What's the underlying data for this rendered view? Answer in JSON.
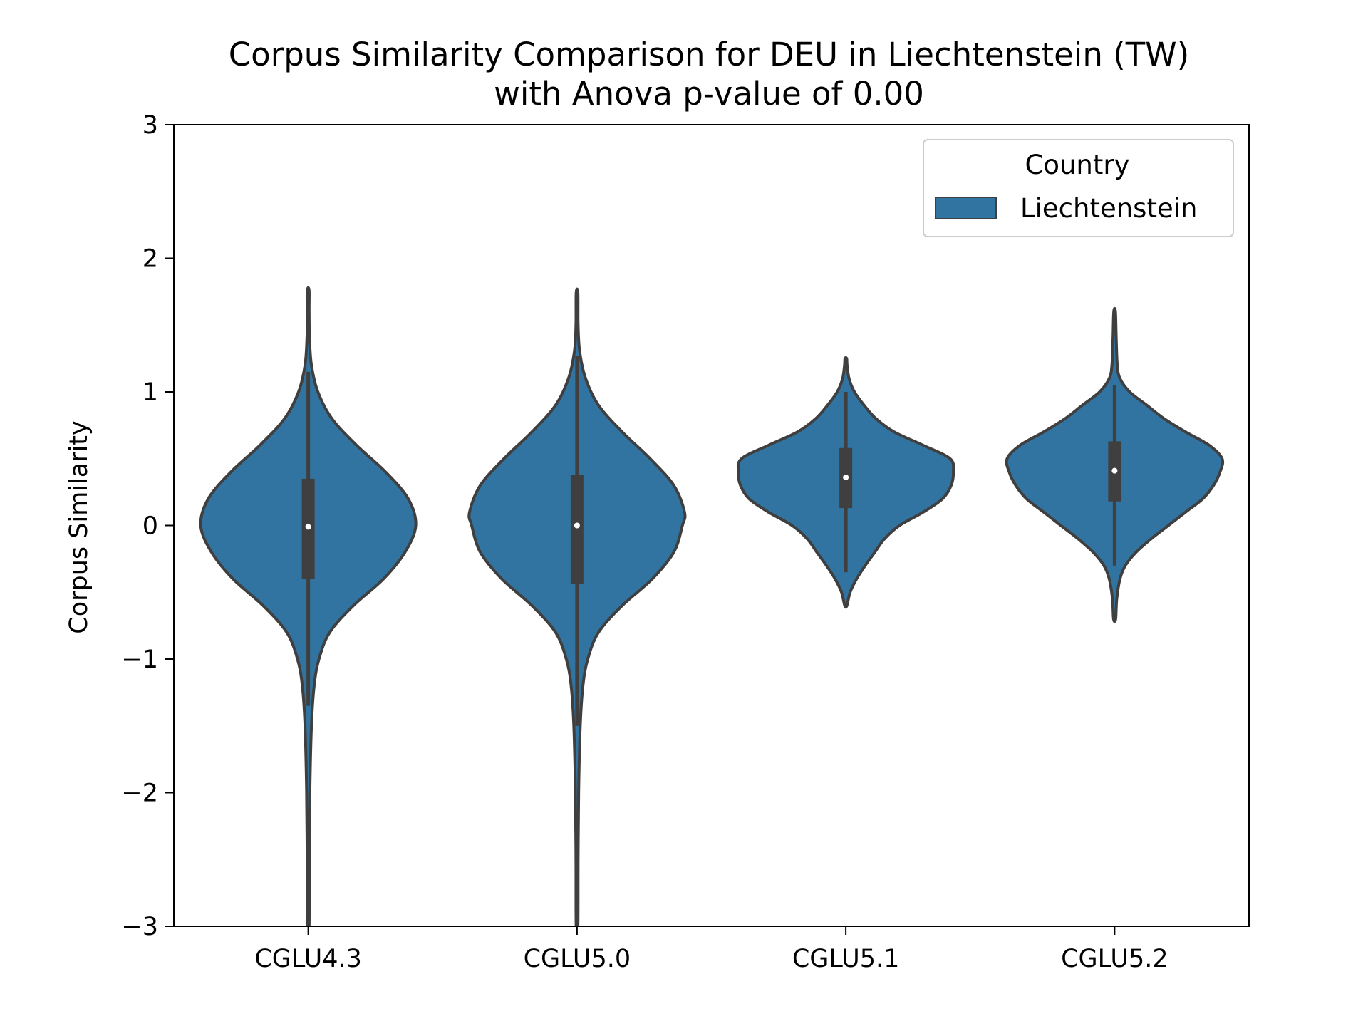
{
  "chart_data": {
    "type": "violin",
    "title_line1": "Corpus Similarity Comparison for DEU in Liechtenstein (TW)",
    "title_line2": "with Anova p-value of 0.00",
    "xlabel": "",
    "ylabel": "Corpus Similarity",
    "ylim": [
      -3,
      3
    ],
    "yticks": [
      3,
      2,
      1,
      0,
      -1,
      -2,
      -3
    ],
    "ytick_labels": [
      "3",
      "2",
      "1",
      "0",
      "−1",
      "−2",
      "−3"
    ],
    "categories": [
      "CGLU4.3",
      "CGLU5.0",
      "CGLU5.1",
      "CGLU5.2"
    ],
    "legend": {
      "title": "Country",
      "entries": [
        "Liechtenstein"
      ],
      "position": "top-right"
    },
    "grid": false,
    "colors": {
      "fill": "#3274a1",
      "edge": "#3f3f3f",
      "box": "#3f3f3f",
      "median": "#ffffff"
    },
    "series": [
      {
        "name": "Liechtenstein",
        "violins": [
          {
            "category": "CGLU4.3",
            "min": -3.0,
            "max": 1.76,
            "q1": -0.4,
            "q3": 0.35,
            "median": -0.01,
            "whisker_low": -1.35,
            "whisker_high": 1.15,
            "profile": [
              [
                -3.0,
                0.006
              ],
              [
                -2.5,
                0.01
              ],
              [
                -2.0,
                0.015
              ],
              [
                -1.5,
                0.03
              ],
              [
                -1.2,
                0.055
              ],
              [
                -1.0,
                0.1
              ],
              [
                -0.8,
                0.2
              ],
              [
                -0.6,
                0.42
              ],
              [
                -0.4,
                0.7
              ],
              [
                -0.2,
                0.9
              ],
              [
                0.0,
                1.0
              ],
              [
                0.2,
                0.93
              ],
              [
                0.4,
                0.72
              ],
              [
                0.6,
                0.45
              ],
              [
                0.8,
                0.22
              ],
              [
                1.0,
                0.09
              ],
              [
                1.2,
                0.03
              ],
              [
                1.4,
                0.012
              ],
              [
                1.6,
                0.007
              ],
              [
                1.76,
                0.004
              ]
            ]
          },
          {
            "category": "CGLU5.0",
            "min": -3.0,
            "max": 1.74,
            "q1": -0.44,
            "q3": 0.38,
            "median": 0.0,
            "whisker_low": -1.5,
            "whisker_high": 1.27,
            "profile": [
              [
                -3.0,
                0.006
              ],
              [
                -2.5,
                0.01
              ],
              [
                -2.0,
                0.015
              ],
              [
                -1.5,
                0.03
              ],
              [
                -1.2,
                0.055
              ],
              [
                -1.0,
                0.1
              ],
              [
                -0.8,
                0.2
              ],
              [
                -0.6,
                0.42
              ],
              [
                -0.4,
                0.7
              ],
              [
                -0.2,
                0.9
              ],
              [
                0.0,
                0.98
              ],
              [
                0.1,
                1.0
              ],
              [
                0.3,
                0.9
              ],
              [
                0.5,
                0.68
              ],
              [
                0.7,
                0.42
              ],
              [
                0.9,
                0.2
              ],
              [
                1.1,
                0.08
              ],
              [
                1.3,
                0.025
              ],
              [
                1.5,
                0.01
              ],
              [
                1.74,
                0.004
              ]
            ]
          },
          {
            "category": "CGLU5.1",
            "min": -0.6,
            "max": 1.25,
            "q1": 0.13,
            "q3": 0.58,
            "median": 0.36,
            "whisker_low": -0.35,
            "whisker_high": 1.0,
            "profile": [
              [
                -0.6,
                0.01
              ],
              [
                -0.5,
                0.04
              ],
              [
                -0.4,
                0.1
              ],
              [
                -0.3,
                0.18
              ],
              [
                -0.2,
                0.27
              ],
              [
                -0.1,
                0.36
              ],
              [
                0.0,
                0.5
              ],
              [
                0.1,
                0.72
              ],
              [
                0.2,
                0.9
              ],
              [
                0.3,
                0.98
              ],
              [
                0.4,
                1.0
              ],
              [
                0.5,
                0.97
              ],
              [
                0.6,
                0.72
              ],
              [
                0.7,
                0.45
              ],
              [
                0.8,
                0.28
              ],
              [
                0.9,
                0.17
              ],
              [
                1.0,
                0.08
              ],
              [
                1.1,
                0.03
              ],
              [
                1.2,
                0.012
              ],
              [
                1.25,
                0.006
              ]
            ]
          },
          {
            "category": "CGLU5.2",
            "min": -0.7,
            "max": 1.6,
            "q1": 0.18,
            "q3": 0.63,
            "median": 0.41,
            "whisker_low": -0.3,
            "whisker_high": 1.05,
            "profile": [
              [
                -0.7,
                0.01
              ],
              [
                -0.55,
                0.02
              ],
              [
                -0.4,
                0.05
              ],
              [
                -0.3,
                0.1
              ],
              [
                -0.2,
                0.2
              ],
              [
                -0.1,
                0.34
              ],
              [
                0.0,
                0.5
              ],
              [
                0.1,
                0.66
              ],
              [
                0.2,
                0.82
              ],
              [
                0.3,
                0.92
              ],
              [
                0.4,
                0.98
              ],
              [
                0.5,
                1.0
              ],
              [
                0.6,
                0.88
              ],
              [
                0.7,
                0.66
              ],
              [
                0.8,
                0.46
              ],
              [
                0.9,
                0.3
              ],
              [
                1.0,
                0.14
              ],
              [
                1.1,
                0.05
              ],
              [
                1.2,
                0.025
              ],
              [
                1.4,
                0.015
              ],
              [
                1.6,
                0.006
              ]
            ]
          }
        ]
      }
    ]
  }
}
